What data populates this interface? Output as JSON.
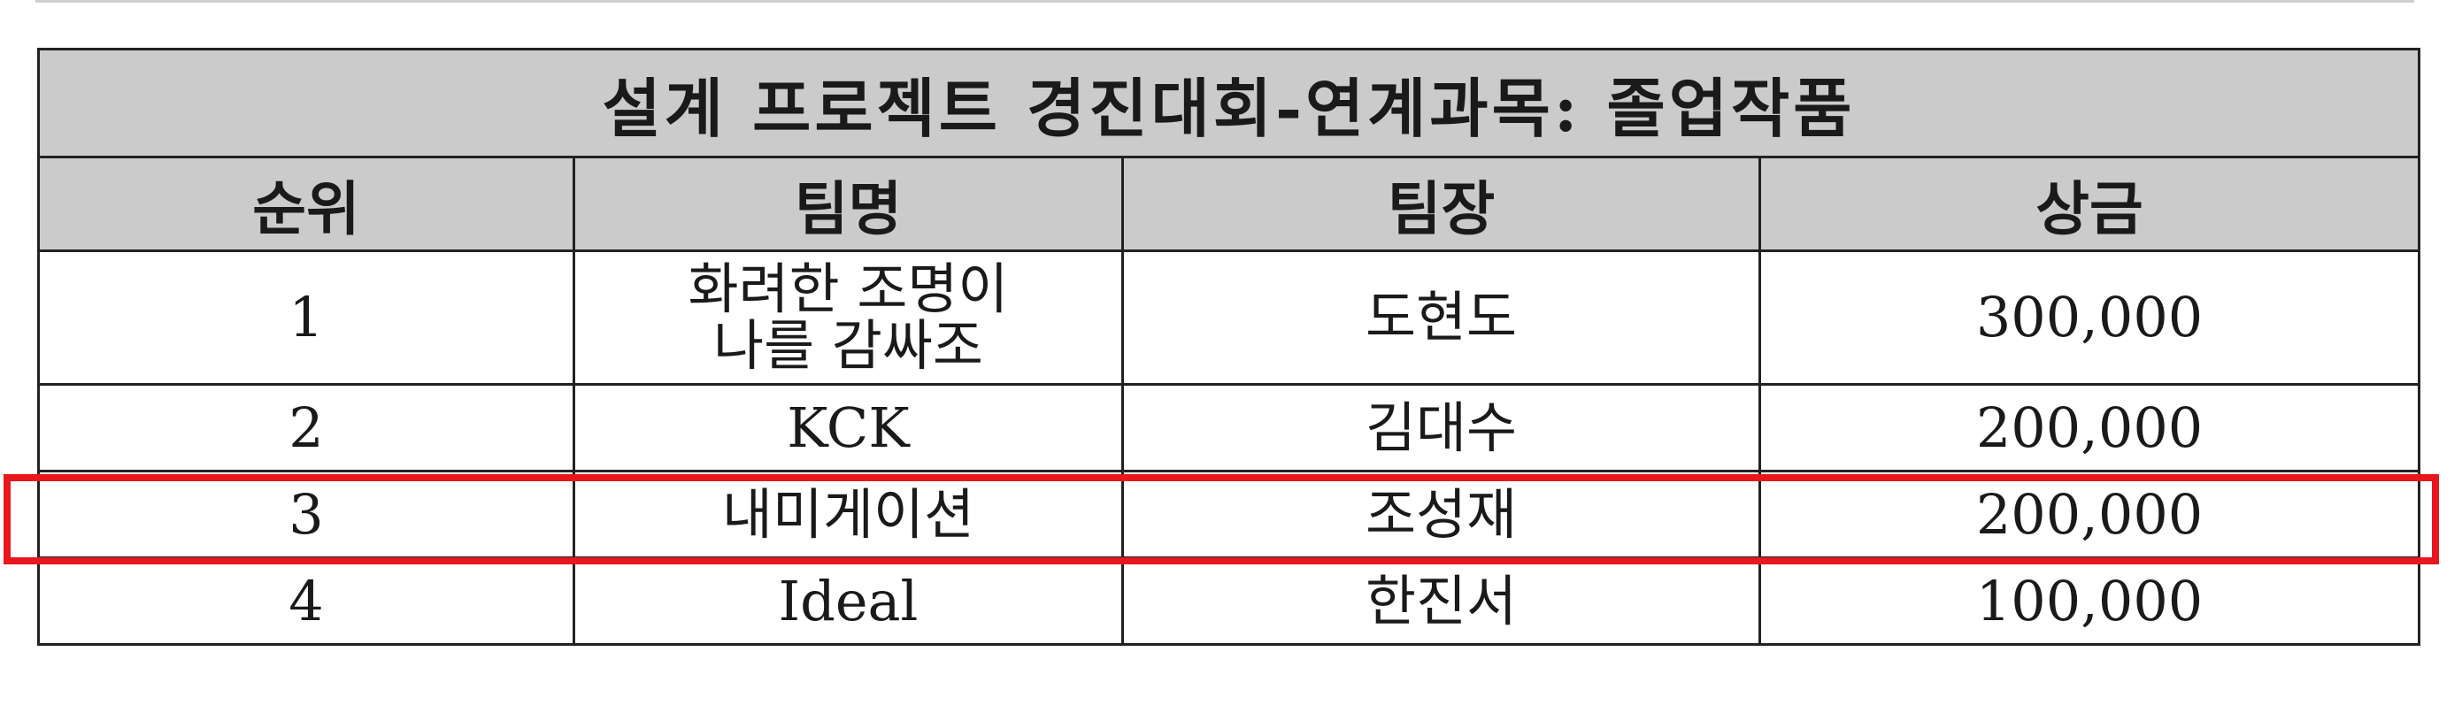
{
  "table": {
    "title": "설계 프로젝트 경진대회-연계과목: 졸업작품",
    "headers": [
      "순위",
      "팀명",
      "팀장",
      "상금"
    ],
    "rows": [
      {
        "rank": "1",
        "team": "화려한 조명이\n나를 감싸조",
        "leader": "도현도",
        "prize": "300,000"
      },
      {
        "rank": "2",
        "team": "KCK",
        "leader": "김대수",
        "prize": "200,000"
      },
      {
        "rank": "3",
        "team": "내미게이션",
        "leader": "조성재",
        "prize": "200,000"
      },
      {
        "rank": "4",
        "team": "Ideal",
        "leader": "한진서",
        "prize": "100,000"
      }
    ]
  },
  "highlight": {
    "row": "3",
    "color": "#e8171d"
  },
  "colors": {
    "header_bg": "#cbcbcb",
    "border": "#222222"
  }
}
